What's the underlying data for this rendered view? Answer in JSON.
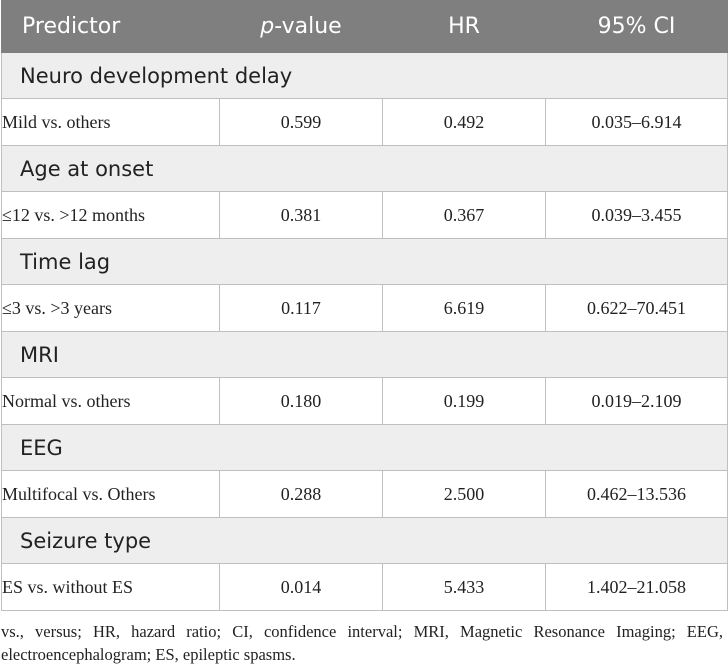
{
  "header": {
    "predictor": "Predictor",
    "p": "p",
    "p_suffix": "-value",
    "hr": "HR",
    "ci": "95% CI"
  },
  "groups": [
    {
      "title": "Neuro development delay",
      "row": {
        "predictor": "Mild vs. others",
        "p": "0.599",
        "hr": "0.492",
        "ci": "0.035–6.914"
      }
    },
    {
      "title": "Age at onset",
      "row": {
        "predictor": "≤12 vs. >12 months",
        "p": "0.381",
        "hr": "0.367",
        "ci": "0.039–3.455"
      }
    },
    {
      "title": "Time lag",
      "row": {
        "predictor": "≤3 vs. >3 years",
        "p": "0.117",
        "hr": "6.619",
        "ci": "0.622–70.451"
      }
    },
    {
      "title": "MRI",
      "row": {
        "predictor": "Normal vs. others",
        "p": "0.180",
        "hr": "0.199",
        "ci": "0.019–2.109"
      }
    },
    {
      "title": "EEG",
      "row": {
        "predictor": "Multifocal vs. Others",
        "p": "0.288",
        "hr": "2.500",
        "ci": "0.462–13.536"
      }
    },
    {
      "title": "Seizure type",
      "row": {
        "predictor": "ES vs. without ES",
        "p": "0.014",
        "hr": "5.433",
        "ci": "1.402–21.058"
      }
    }
  ],
  "footnote": "vs., versus; HR, hazard ratio; CI, confidence interval; MRI, Magnetic Resonance Imaging; EEG, electroencephalogram; ES, epileptic spasms."
}
